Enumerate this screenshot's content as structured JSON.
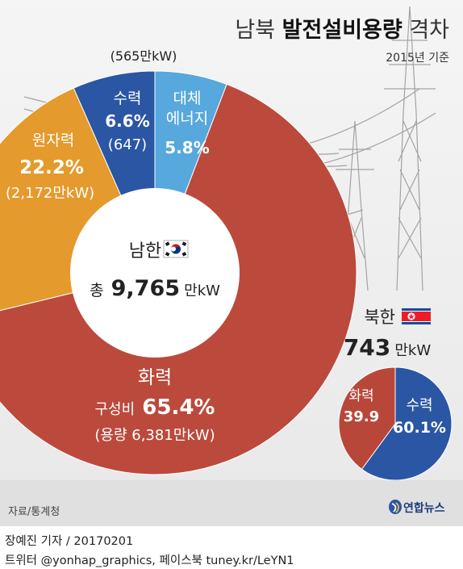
{
  "header": {
    "title_plain": "남북",
    "title_bold": "발전설비용량",
    "title_tail": "격차",
    "subtitle": "2015년 기준"
  },
  "source": "자료/통계청",
  "agency": "연합뉴스",
  "credit": {
    "line1": "장예진 기자 / 20170201",
    "line2": "트위터 @yonhap_graphics, 페이스북 tuney.kr/LeYN1"
  },
  "colors": {
    "thermal_south": "#bb4a3c",
    "nuclear": "#e49a2c",
    "hydro": "#2a56a4",
    "renewable": "#57a8dc",
    "thermal_north": "#b8473a"
  },
  "chart_data": [
    {
      "type": "pie",
      "region": "남한",
      "flag": "south-korea-flag",
      "total_label": "총",
      "total_value": "9,765",
      "total_unit": "만kW",
      "slices": [
        {
          "key": "thermal",
          "name": "화력",
          "value": 65.4,
          "display_pct": "65.4%",
          "prefix": "구성비",
          "detail": "(용량 6,381만kW)",
          "color": "#bb4a3c"
        },
        {
          "key": "nuclear",
          "name": "원자력",
          "value": 22.2,
          "display_pct": "22.2%",
          "detail": "(2,172만kW)",
          "color": "#e49a2c"
        },
        {
          "key": "hydro",
          "name": "수력",
          "value": 6.6,
          "display_pct": "6.6%",
          "detail": "(647)",
          "color": "#2a56a4"
        },
        {
          "key": "renewable",
          "name": "대체 에너지",
          "name_line1": "대체",
          "name_line2": "에너지",
          "value": 5.8,
          "display_pct": "5.8%",
          "detail": "(565만kW)",
          "color": "#57a8dc"
        }
      ]
    },
    {
      "type": "pie",
      "region": "북한",
      "flag": "north-korea-flag",
      "total_value": "743",
      "total_unit": "만kW",
      "slices": [
        {
          "key": "hydro",
          "name": "수력",
          "value": 60.1,
          "display_pct": "60.1%",
          "color": "#2a56a4"
        },
        {
          "key": "thermal",
          "name": "화력",
          "value": 39.9,
          "display_pct": "39.9",
          "color": "#b8473a"
        }
      ]
    }
  ]
}
